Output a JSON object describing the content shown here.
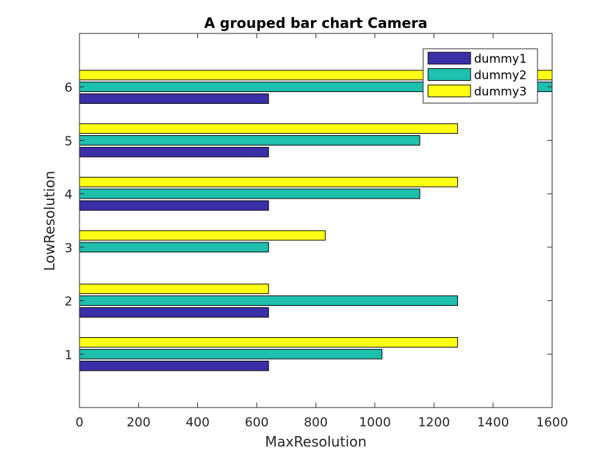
{
  "chart_data": {
    "type": "bar",
    "orientation": "horizontal",
    "title": "A grouped bar chart Camera",
    "xlabel": "MaxResolution",
    "ylabel": "LowResolution",
    "categories": [
      "1",
      "2",
      "3",
      "4",
      "5",
      "6"
    ],
    "series": [
      {
        "name": "dummy1",
        "color": "#3b2fa8",
        "values": [
          640,
          640,
          null,
          640,
          640,
          640
        ]
      },
      {
        "name": "dummy2",
        "color": "#1fbfad",
        "values": [
          1024,
          1280,
          640,
          1152,
          1152,
          1600
        ]
      },
      {
        "name": "dummy3",
        "color": "#ffff14",
        "values": [
          1280,
          640,
          832,
          1280,
          1280,
          1600
        ]
      }
    ],
    "xlim": [
      0,
      1600
    ],
    "ylim": [
      0,
      7
    ],
    "xticks": [
      "0",
      "200",
      "400",
      "600",
      "800",
      "1000",
      "1200",
      "1400",
      "1600"
    ],
    "yticks": [
      "1",
      "2",
      "3",
      "4",
      "5",
      "6"
    ],
    "grid": false,
    "legend_position": "top-right"
  }
}
